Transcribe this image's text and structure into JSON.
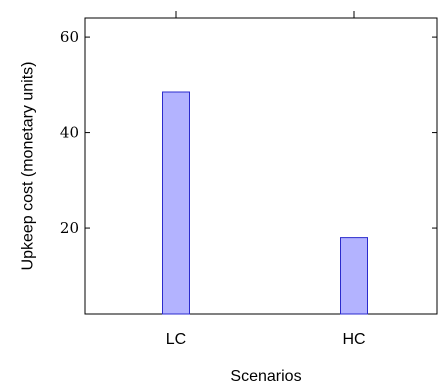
{
  "chart_data": {
    "type": "bar",
    "categories": [
      "LC",
      "HC"
    ],
    "values": [
      48.5,
      18
    ],
    "xlabel": "Scenarios",
    "ylabel": "Upkeep cost (monetary units)",
    "ylim": [
      2,
      64
    ],
    "yticks": [
      20,
      40,
      60
    ],
    "grid": false,
    "legend": "none",
    "colors": {
      "bar_fill": "#b3b3ff",
      "bar_stroke": "#2b2bcc",
      "axis": "#000000"
    }
  }
}
